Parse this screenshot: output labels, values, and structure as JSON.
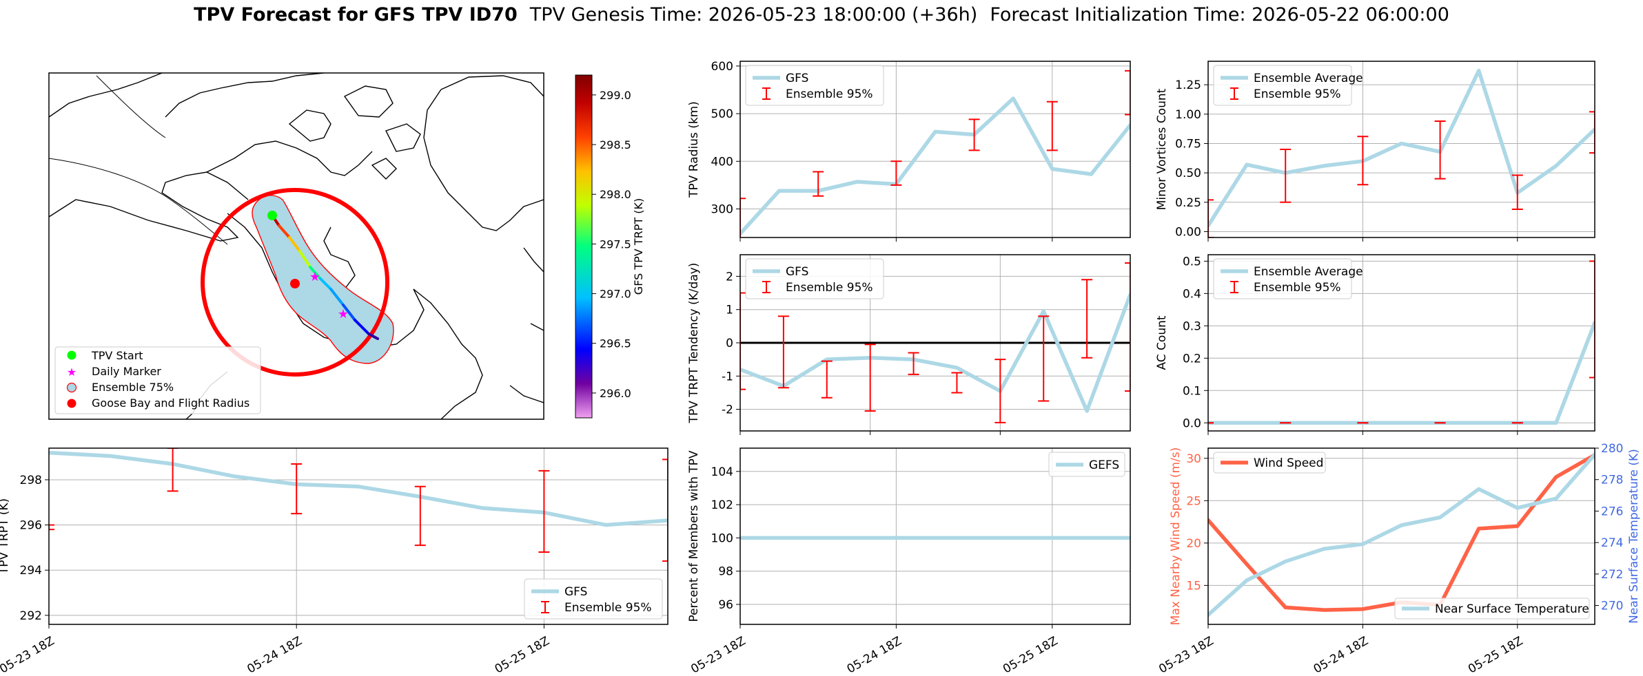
{
  "header": {
    "title_bold": "TPV Forecast for GFS TPV ID70",
    "genesis": "TPV Genesis Time: 2026-05-23 18:00:00 (+36h)",
    "init": "Forecast Initialization Time: 2026-05-22 06:00:00"
  },
  "map": {
    "legend": [
      "TPV Start",
      "Daily Marker",
      "Ensemble 75%",
      "Goose Bay and Flight Radius"
    ],
    "colorbar": {
      "label": "GFS TPV TRPT (K)",
      "min": 295.75,
      "max": 299.2,
      "ticks": [
        "296.0",
        "296.5",
        "297.0",
        "297.5",
        "298.0",
        "298.5",
        "299.0"
      ],
      "tick_values": [
        296.0,
        296.5,
        297.0,
        297.5,
        298.0,
        298.5,
        299.0
      ],
      "colormap": [
        "#f0a0f0",
        "#7000a0",
        "#0000ff",
        "#00c0ff",
        "#00ff80",
        "#c0ff00",
        "#ffc000",
        "#ff4000",
        "#c00000",
        "#800000"
      ]
    },
    "colors": {
      "start": "#00ff00",
      "marker": "#ff00ff",
      "ensemble": "#add8e6",
      "ensemble_edge": "#ff0000",
      "goose_bay": "#ff0000",
      "radius": "#ff0000"
    }
  },
  "x_ticks": [
    "05-23 18Z",
    "05-24 18Z",
    "05-25 18Z"
  ],
  "chart_data": [
    {
      "id": "radius",
      "type": "line",
      "ylabel": "TPV Radius (km)",
      "ylim": [
        240,
        610
      ],
      "yticks": [
        300,
        400,
        500,
        600
      ],
      "xlim": [
        0,
        10
      ],
      "xtick_positions": [
        0,
        4,
        8
      ],
      "legend": {
        "position": "upper-left"
      },
      "series": [
        {
          "name": "GFS",
          "color": "#add8e6",
          "x": [
            0,
            1,
            2,
            3,
            4,
            5,
            6,
            7,
            8,
            9,
            10
          ],
          "values": [
            248,
            338,
            338,
            357,
            352,
            462,
            456,
            532,
            384,
            373,
            476
          ]
        },
        {
          "name": "Ensemble 95%",
          "type": "errorbar",
          "color": "#ff0000",
          "x": [
            0,
            2,
            4,
            6,
            8,
            10
          ],
          "low": [
            230,
            327,
            350,
            423,
            423,
            498
          ],
          "high": [
            322,
            378,
            400,
            488,
            525,
            590
          ]
        }
      ]
    },
    {
      "id": "minor",
      "type": "line",
      "ylabel": "Minor Vortices Count",
      "ylim": [
        -0.05,
        1.45
      ],
      "yticks": [
        0.0,
        0.25,
        0.5,
        0.75,
        1.0,
        1.25
      ],
      "ytick_labels": [
        "0.00",
        "0.25",
        "0.50",
        "0.75",
        "1.00",
        "1.25"
      ],
      "xlim": [
        0,
        10
      ],
      "xtick_positions": [
        0,
        4,
        8
      ],
      "legend": {
        "position": "upper-left"
      },
      "series": [
        {
          "name": "Ensemble Average",
          "color": "#add8e6",
          "x": [
            0,
            1,
            2,
            3,
            4,
            5,
            6,
            7,
            8,
            9,
            10
          ],
          "values": [
            0.05,
            0.57,
            0.5,
            0.56,
            0.6,
            0.75,
            0.68,
            1.37,
            0.33,
            0.56,
            0.87
          ]
        },
        {
          "name": "Ensemble 95%",
          "type": "errorbar",
          "color": "#ff0000",
          "x": [
            0,
            2,
            4,
            6,
            8,
            10
          ],
          "low": [
            -0.05,
            0.25,
            0.4,
            0.45,
            0.19,
            0.67
          ],
          "high": [
            0.27,
            0.7,
            0.81,
            0.94,
            0.48,
            1.02
          ]
        }
      ]
    },
    {
      "id": "tendency",
      "type": "line",
      "ylabel": "TPV TRPT Tendency (K/day)",
      "ylim": [
        -2.65,
        2.65
      ],
      "yticks": [
        -2,
        -1,
        0,
        1,
        2
      ],
      "xlim": [
        0,
        9
      ],
      "xtick_positions": [
        0,
        3,
        6
      ],
      "zero_line": true,
      "legend": {
        "position": "upper-left"
      },
      "series": [
        {
          "name": "GFS",
          "color": "#add8e6",
          "x": [
            0,
            1,
            2,
            3,
            4,
            5,
            6,
            7,
            8,
            9
          ],
          "values": [
            -0.8,
            -1.3,
            -0.5,
            -0.45,
            -0.5,
            -0.75,
            -1.45,
            0.95,
            -2.05,
            1.45
          ]
        },
        {
          "name": "Ensemble 95%",
          "type": "errorbar",
          "color": "#ff0000",
          "x": [
            0,
            1,
            2,
            3,
            4,
            5,
            6,
            7,
            8,
            9
          ],
          "low": [
            -1.4,
            -1.35,
            -1.65,
            -2.05,
            -0.95,
            -1.5,
            -2.4,
            -1.75,
            -0.45,
            -1.45
          ],
          "high": [
            1.5,
            0.8,
            -0.55,
            -0.05,
            -0.3,
            -0.9,
            -0.5,
            0.8,
            1.9,
            2.4
          ]
        }
      ]
    },
    {
      "id": "ac",
      "type": "line",
      "ylabel": "AC Count",
      "ylim": [
        -0.025,
        0.52
      ],
      "yticks": [
        0.0,
        0.1,
        0.2,
        0.3,
        0.4,
        0.5
      ],
      "ytick_labels": [
        "0.0",
        "0.1",
        "0.2",
        "0.3",
        "0.4",
        "0.5"
      ],
      "xlim": [
        0,
        10
      ],
      "xtick_positions": [
        0,
        4,
        8
      ],
      "legend": {
        "position": "upper-left"
      },
      "series": [
        {
          "name": "Ensemble Average",
          "color": "#add8e6",
          "x": [
            0,
            1,
            2,
            3,
            4,
            5,
            6,
            7,
            8,
            9,
            10
          ],
          "values": [
            0,
            0,
            0,
            0,
            0,
            0,
            0,
            0,
            0,
            0,
            0.31
          ]
        },
        {
          "name": "Ensemble 95%",
          "type": "errorbar",
          "color": "#ff0000",
          "x": [
            0,
            2,
            4,
            6,
            8,
            10
          ],
          "low": [
            0,
            0,
            0,
            0,
            0,
            0.14
          ],
          "high": [
            0,
            0,
            0,
            0,
            0,
            0.5
          ]
        }
      ]
    },
    {
      "id": "trpt",
      "type": "line",
      "ylabel": "TPV TRPT (K)",
      "ylim": [
        291.6,
        299.4
      ],
      "yticks": [
        292,
        294,
        296,
        298
      ],
      "xlim": [
        0,
        10
      ],
      "xtick_positions": [
        0,
        4,
        8
      ],
      "legend": {
        "position": "lower-right"
      },
      "series": [
        {
          "name": "GFS",
          "color": "#add8e6",
          "x": [
            0,
            1,
            2,
            3,
            4,
            5,
            6,
            7,
            8,
            9,
            10
          ],
          "values": [
            299.2,
            299.05,
            298.7,
            298.15,
            297.8,
            297.7,
            297.25,
            296.75,
            296.55,
            296.0,
            296.2
          ]
        },
        {
          "name": "Ensemble 95%",
          "type": "errorbar",
          "color": "#ff0000",
          "x": [
            0,
            2,
            4,
            6,
            8,
            10
          ],
          "low": [
            295.8,
            297.5,
            296.5,
            295.1,
            294.8,
            294.4
          ],
          "high": [
            296.0,
            299.4,
            298.7,
            297.7,
            298.4,
            298.9
          ]
        }
      ]
    },
    {
      "id": "percent",
      "type": "line",
      "ylabel": "Percent of Members with TPV",
      "ylim": [
        94.8,
        105.4
      ],
      "yticks": [
        96,
        98,
        100,
        102,
        104
      ],
      "xlim": [
        0,
        10
      ],
      "xtick_positions": [
        0,
        4,
        8
      ],
      "legend": {
        "position": "upper-right"
      },
      "series": [
        {
          "name": "GEFS",
          "color": "#add8e6",
          "x": [
            0,
            10
          ],
          "values": [
            100,
            100
          ]
        }
      ]
    },
    {
      "id": "wind",
      "type": "line",
      "ylabel": "Max Nearby Wind Speed (m/s)",
      "ylim": [
        10.4,
        31.2
      ],
      "yticks": [
        15,
        20,
        25,
        30
      ],
      "ylabel_right": "Near Surface Temperature (K)",
      "ylim_right": [
        268.8,
        280
      ],
      "yticks_right": [
        270,
        272,
        274,
        276,
        278,
        280
      ],
      "xlim": [
        0,
        10
      ],
      "xtick_positions": [
        0,
        4,
        8
      ],
      "series": [
        {
          "name": "Wind Speed",
          "color": "#ff6347",
          "axis": "left",
          "x": [
            0,
            1,
            2,
            3,
            4,
            5,
            6,
            7,
            8,
            9,
            10
          ],
          "values": [
            22.7,
            17.5,
            12.4,
            12.1,
            12.2,
            13.0,
            12.7,
            21.7,
            22.0,
            27.8,
            30.4
          ]
        },
        {
          "name": "Near Surface Temperature",
          "color": "#add8e6",
          "axis": "right",
          "x": [
            0,
            1,
            2,
            3,
            4,
            5,
            6,
            7,
            8,
            9,
            10
          ],
          "values": [
            269.4,
            271.6,
            272.8,
            273.6,
            273.9,
            275.1,
            275.6,
            277.4,
            276.2,
            276.8,
            279.6
          ]
        }
      ]
    }
  ]
}
